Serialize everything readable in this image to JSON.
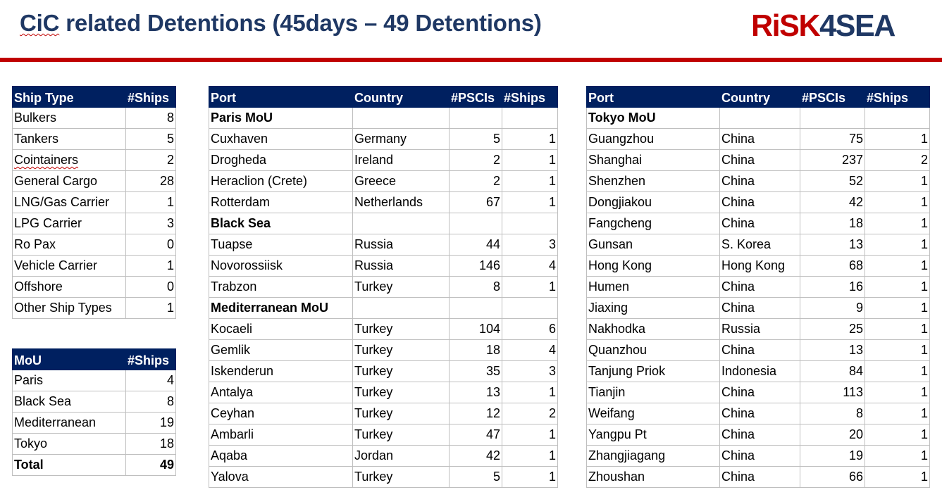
{
  "header": {
    "title": "CiC related Detentions (45days – 49 Detentions)",
    "logo_red": "RiSK",
    "logo_blue": "4SEA"
  },
  "ship_types": {
    "headers": [
      "Ship Type",
      "#Ships"
    ],
    "rows": [
      [
        "Bulkers",
        "8"
      ],
      [
        "Tankers",
        "5"
      ],
      [
        "Cointainers",
        "2"
      ],
      [
        "General Cargo",
        "28"
      ],
      [
        "LNG/Gas Carrier",
        "1"
      ],
      [
        "LPG Carrier",
        "3"
      ],
      [
        "Ro Pax",
        "0"
      ],
      [
        "Vehicle Carrier",
        "1"
      ],
      [
        "Offshore",
        "0"
      ],
      [
        "Other Ship Types",
        "1"
      ]
    ]
  },
  "mous": {
    "headers": [
      "MoU",
      "#Ships"
    ],
    "rows": [
      [
        "Paris",
        "4"
      ],
      [
        "Black Sea",
        "8"
      ],
      [
        "Mediterranean",
        "19"
      ],
      [
        "Tokyo",
        "18"
      ]
    ],
    "total": [
      "Total",
      "49"
    ]
  },
  "ports_left": {
    "headers": [
      "Port",
      "Country",
      "#PSCIs",
      "#Ships"
    ],
    "rows": [
      {
        "group": "Paris MoU"
      },
      [
        "Cuxhaven",
        "Germany",
        "5",
        "1"
      ],
      [
        "Drogheda",
        "Ireland",
        "2",
        "1"
      ],
      [
        "Heraclion (Crete)",
        "Greece",
        "2",
        "1"
      ],
      [
        "Rotterdam",
        "Netherlands",
        "67",
        "1"
      ],
      {
        "group": "Black Sea"
      },
      [
        "Tuapse",
        "Russia",
        "44",
        "3"
      ],
      [
        "Novorossiisk",
        "Russia",
        "146",
        "4"
      ],
      [
        "Trabzon",
        "Turkey",
        "8",
        "1"
      ],
      {
        "group": "Mediterranean MoU"
      },
      [
        "Kocaeli",
        "Turkey",
        "104",
        "6"
      ],
      [
        "Gemlik",
        "Turkey",
        "18",
        "4"
      ],
      [
        "Iskenderun",
        "Turkey",
        "35",
        "3"
      ],
      [
        "Antalya",
        "Turkey",
        "13",
        "1"
      ],
      [
        "Ceyhan",
        "Turkey",
        "12",
        "2"
      ],
      [
        "Ambarli",
        "Turkey",
        "47",
        "1"
      ],
      [
        "Aqaba",
        "Jordan",
        "42",
        "1"
      ],
      [
        "Yalova",
        "Turkey",
        "5",
        "1"
      ]
    ]
  },
  "ports_right": {
    "headers": [
      "Port",
      "Country",
      "#PSCIs",
      "#Ships"
    ],
    "rows": [
      {
        "group": "Tokyo MoU"
      },
      [
        "Guangzhou",
        "China",
        "75",
        "1"
      ],
      [
        "Shanghai",
        "China",
        "237",
        "2"
      ],
      [
        "Shenzhen",
        "China",
        "52",
        "1"
      ],
      [
        "Dongjiakou",
        "China",
        "42",
        "1"
      ],
      [
        "Fangcheng",
        "China",
        "18",
        "1"
      ],
      [
        "Gunsan",
        "S. Korea",
        "13",
        "1"
      ],
      [
        "Hong Kong",
        "Hong Kong",
        "68",
        "1"
      ],
      [
        "Humen",
        "China",
        "16",
        "1"
      ],
      [
        "Jiaxing",
        "China",
        "9",
        "1"
      ],
      [
        "Nakhodka",
        "Russia",
        "25",
        "1"
      ],
      [
        "Quanzhou",
        "China",
        "13",
        "1"
      ],
      [
        "Tanjung Priok",
        "Indonesia",
        "84",
        "1"
      ],
      [
        "Tianjin",
        "China",
        "113",
        "1"
      ],
      [
        "Weifang",
        "China",
        "8",
        "1"
      ],
      [
        "Yangpu Pt",
        "China",
        "20",
        "1"
      ],
      [
        "Zhangjiagang",
        "China",
        "19",
        "1"
      ],
      [
        "Zhoushan",
        "China",
        "66",
        "1"
      ]
    ]
  }
}
